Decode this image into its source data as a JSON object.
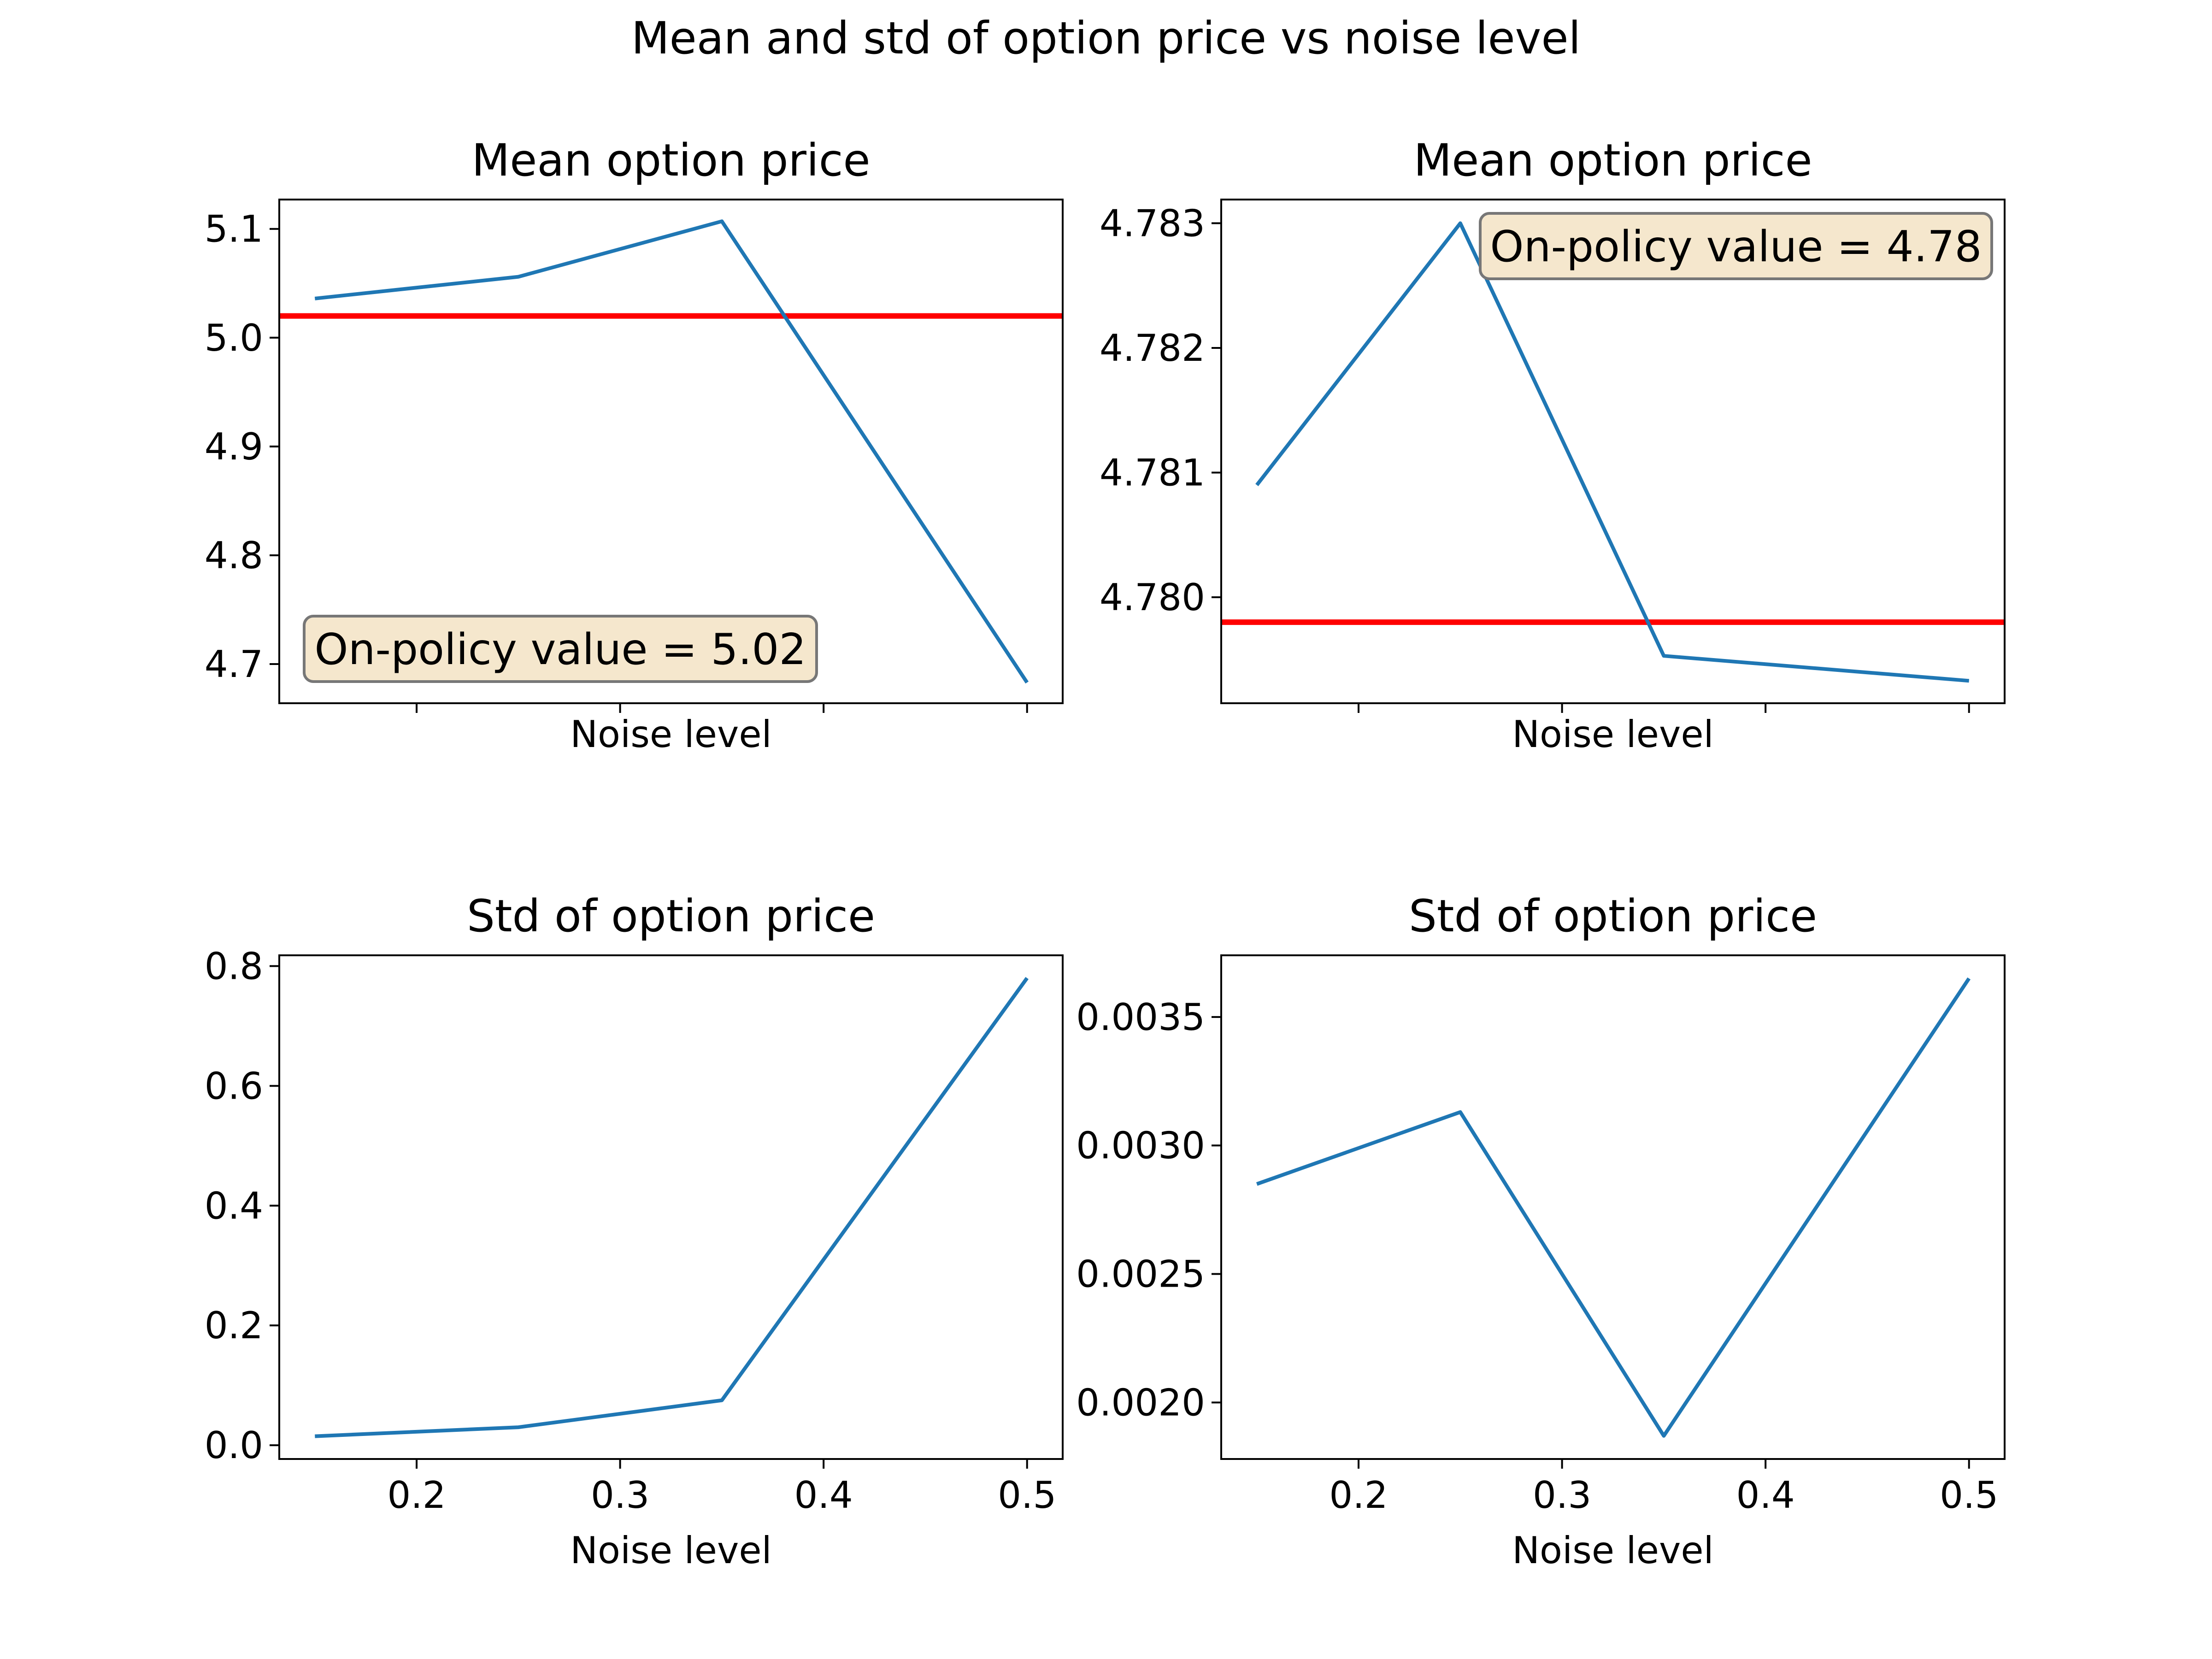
{
  "figure": {
    "suptitle": "Mean and std of option price vs noise level"
  },
  "colors": {
    "series": "#1f77b4",
    "reference": "#ff0000",
    "annotation_fill": "#f5e7cd",
    "annotation_edge": "#777777",
    "axes": "#000000"
  },
  "chart_data": [
    {
      "type": "line",
      "title": "Mean option price",
      "xlabel": "Noise level",
      "ylabel": "",
      "x": [
        0.15,
        0.25,
        0.35,
        0.5
      ],
      "series": [
        {
          "values": [
            5.036,
            5.056,
            5.107,
            4.683
          ]
        }
      ],
      "hline": 5.02,
      "xlim": [
        0.1325,
        0.5175
      ],
      "ylim": [
        4.664,
        5.127
      ],
      "xticks": [
        0.2,
        0.3,
        0.4,
        0.5
      ],
      "xticklabels": [],
      "yticks": [
        4.7,
        4.8,
        4.9,
        5.0,
        5.1
      ],
      "yticklabels": [
        "4.7",
        "4.8",
        "4.9",
        "5.0",
        "5.1"
      ],
      "annotation": {
        "text": "On-policy value = 5.02",
        "position": "bottom-left"
      },
      "grid": false
    },
    {
      "type": "line",
      "title": "Mean option price",
      "xlabel": "Noise level",
      "ylabel": "",
      "x": [
        0.15,
        0.25,
        0.35,
        0.5
      ],
      "series": [
        {
          "values": [
            4.7809,
            4.783,
            4.77953,
            4.77933
          ]
        }
      ],
      "hline": 4.7798,
      "xlim": [
        0.1325,
        0.5175
      ],
      "ylim": [
        4.77915,
        4.78319
      ],
      "xticks": [
        0.2,
        0.3,
        0.4,
        0.5
      ],
      "xticklabels": [],
      "yticks": [
        4.78,
        4.781,
        4.782,
        4.783
      ],
      "yticklabels": [
        "4.780",
        "4.781",
        "4.782",
        "4.783"
      ],
      "annotation": {
        "text": "On-policy value = 4.78",
        "position": "top-right"
      },
      "grid": false
    },
    {
      "type": "line",
      "title": "Std of option price",
      "xlabel": "Noise level",
      "ylabel": "",
      "x": [
        0.15,
        0.25,
        0.35,
        0.5
      ],
      "series": [
        {
          "values": [
            0.015,
            0.03,
            0.075,
            0.78
          ]
        }
      ],
      "xlim": [
        0.1325,
        0.5175
      ],
      "ylim": [
        -0.023,
        0.818
      ],
      "xticks": [
        0.2,
        0.3,
        0.4,
        0.5
      ],
      "xticklabels": [
        "0.2",
        "0.3",
        "0.4",
        "0.5"
      ],
      "yticks": [
        0.0,
        0.2,
        0.4,
        0.6,
        0.8
      ],
      "yticklabels": [
        "0.0",
        "0.2",
        "0.4",
        "0.6",
        "0.8"
      ],
      "grid": false
    },
    {
      "type": "line",
      "title": "Std of option price",
      "xlabel": "Noise level",
      "ylabel": "",
      "x": [
        0.15,
        0.25,
        0.35,
        0.5
      ],
      "series": [
        {
          "values": [
            0.00285,
            0.00313,
            0.00187,
            0.00365
          ]
        }
      ],
      "xlim": [
        0.1325,
        0.5175
      ],
      "ylim": [
        0.00178,
        0.00374
      ],
      "xticks": [
        0.2,
        0.3,
        0.4,
        0.5
      ],
      "xticklabels": [
        "0.2",
        "0.3",
        "0.4",
        "0.5"
      ],
      "yticks": [
        0.002,
        0.0025,
        0.003,
        0.0035
      ],
      "yticklabels": [
        "0.0020",
        "0.0025",
        "0.0030",
        "0.0035"
      ],
      "grid": false
    }
  ]
}
